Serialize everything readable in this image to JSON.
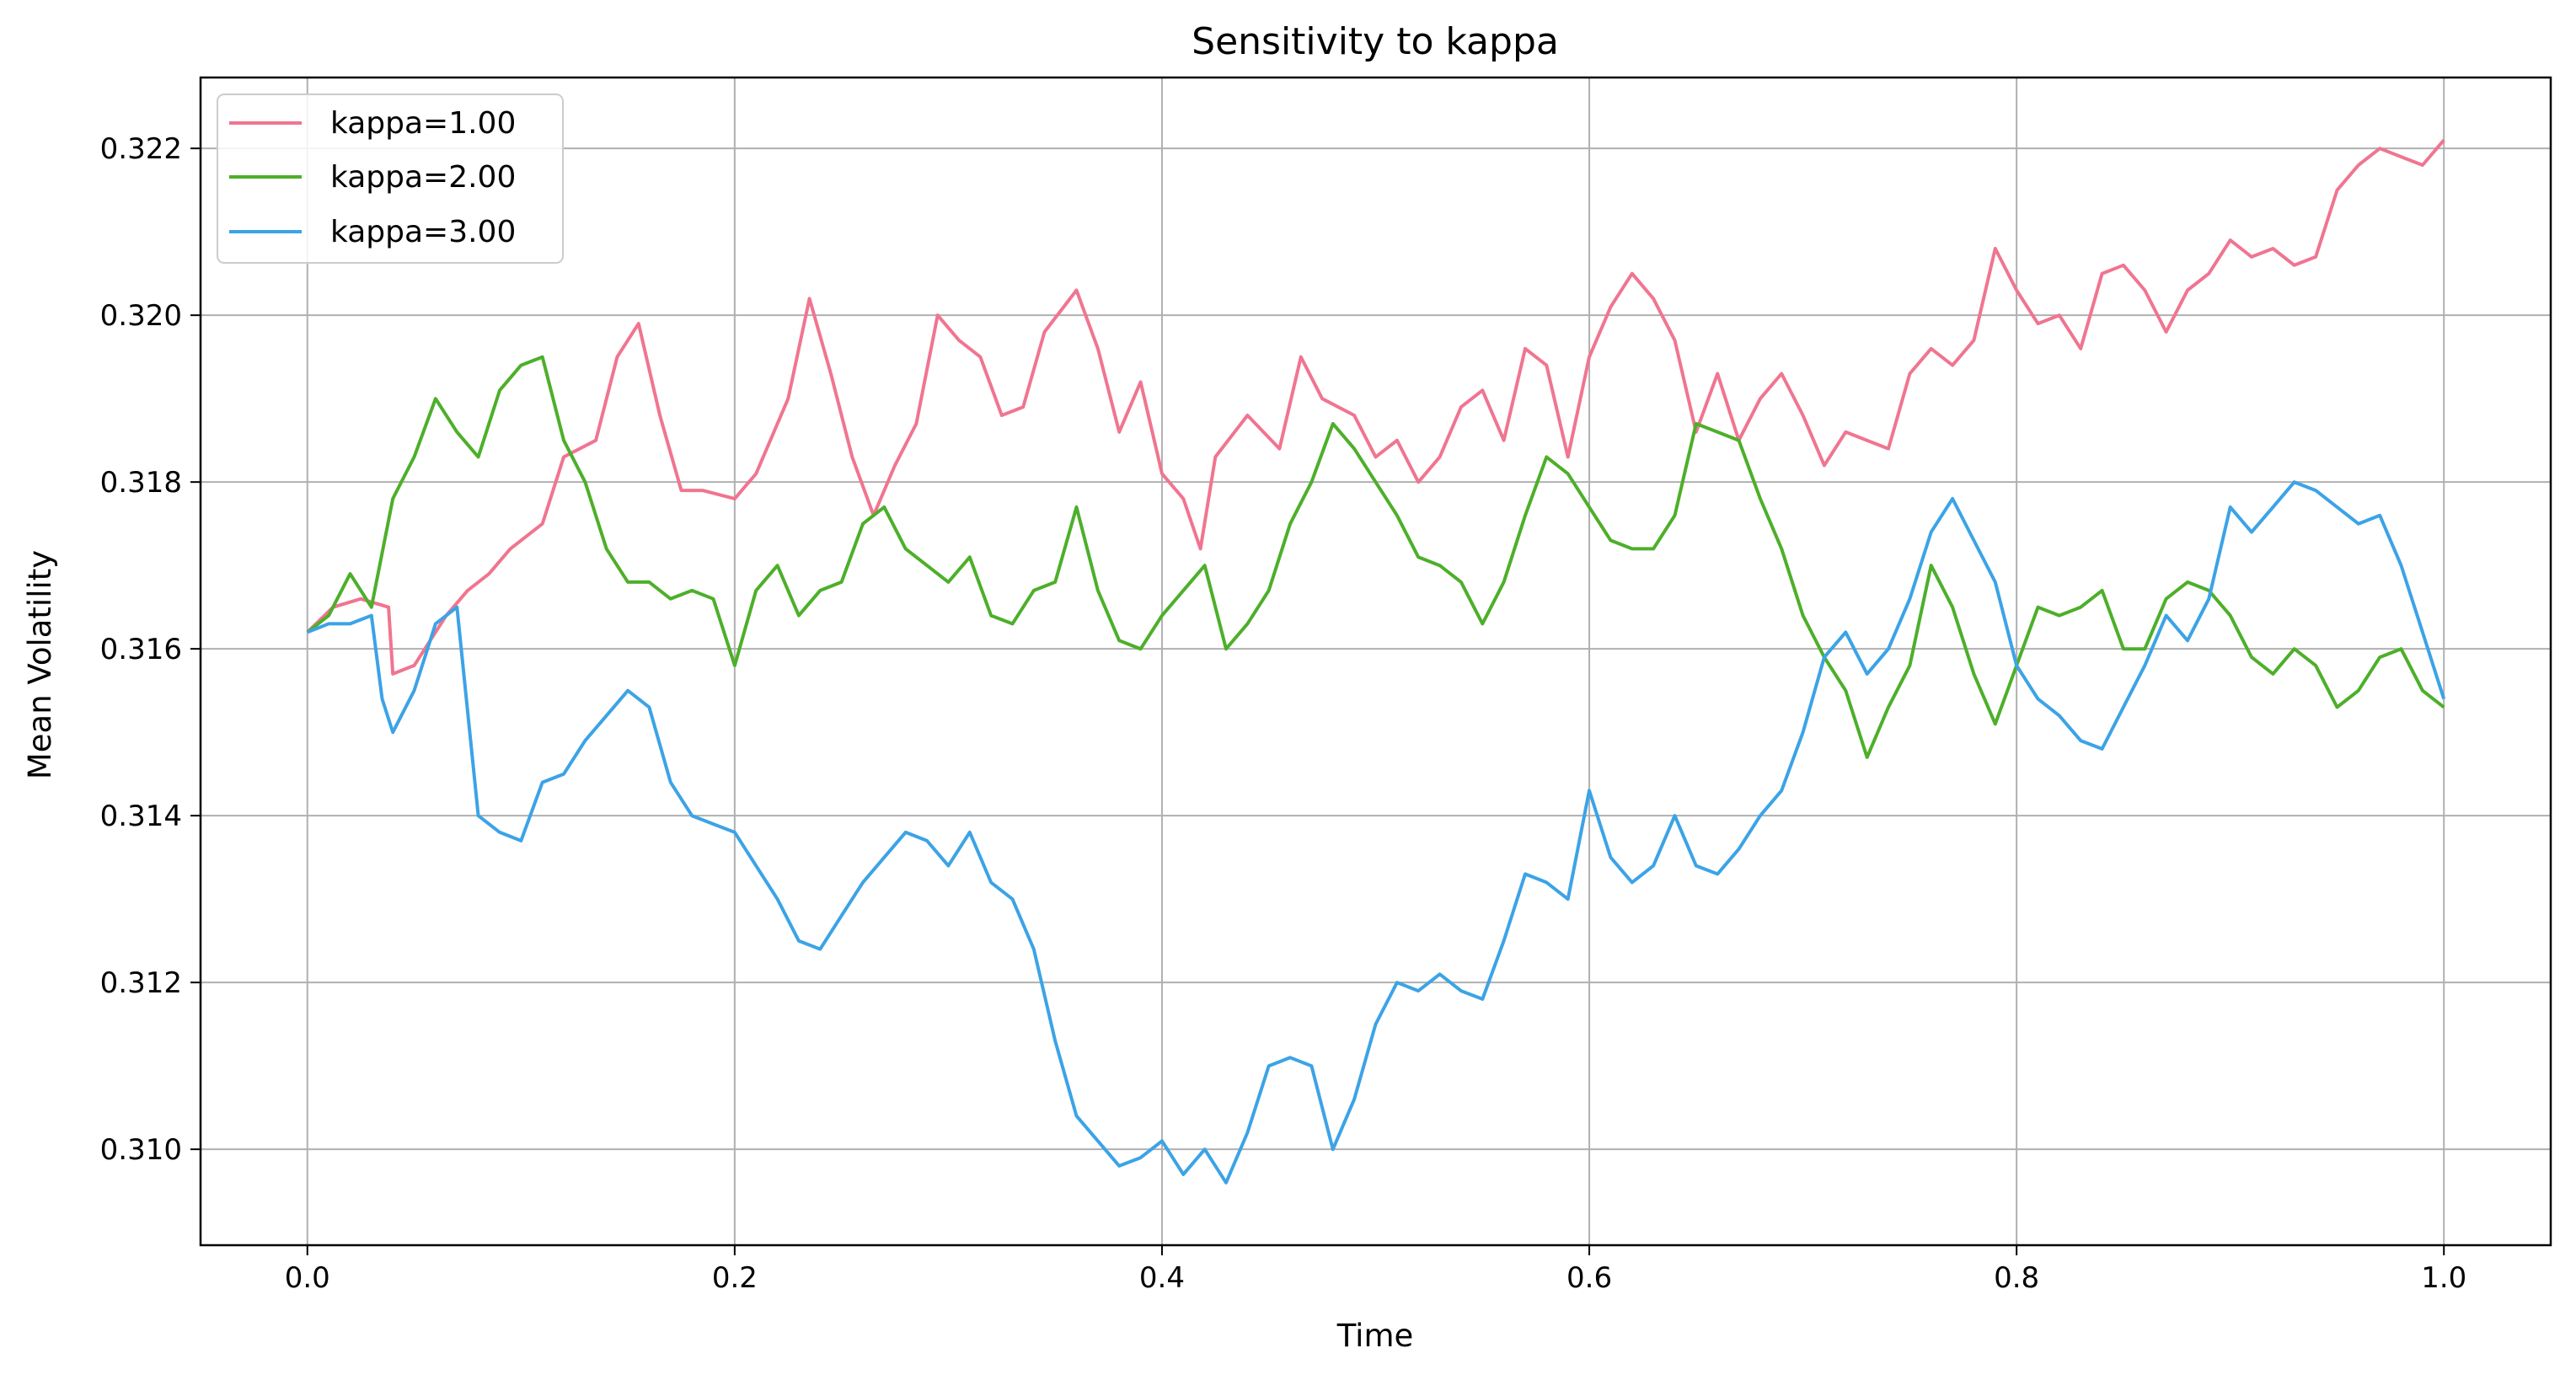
{
  "chart_data": {
    "type": "line",
    "title": "Sensitivity to kappa",
    "xlabel": "Time",
    "ylabel": "Mean Volatility",
    "xlim": [
      -0.05,
      1.05
    ],
    "ylim": [
      0.30885,
      0.32285
    ],
    "grid": true,
    "legend_position": "top-left",
    "xticks": [
      0.0,
      0.2,
      0.4,
      0.6,
      0.8,
      1.0
    ],
    "xtick_labels": [
      "0.0",
      "0.2",
      "0.4",
      "0.6",
      "0.8",
      "1.0"
    ],
    "yticks": [
      0.31,
      0.312,
      0.314,
      0.316,
      0.318,
      0.32,
      0.322
    ],
    "ytick_labels": [
      "0.310",
      "0.312",
      "0.314",
      "0.316",
      "0.318",
      "0.320",
      "0.322"
    ],
    "series": [
      {
        "name": "kappa=1.00",
        "color": "#f07590",
        "points": [
          [
            0.0,
            0.3162
          ],
          [
            0.012,
            0.3165
          ],
          [
            0.025,
            0.3166
          ],
          [
            0.038,
            0.3165
          ],
          [
            0.04,
            0.3157
          ],
          [
            0.05,
            0.3158
          ],
          [
            0.065,
            0.3164
          ],
          [
            0.075,
            0.3167
          ],
          [
            0.085,
            0.3169
          ],
          [
            0.095,
            0.3172
          ],
          [
            0.11,
            0.3175
          ],
          [
            0.12,
            0.3183
          ],
          [
            0.135,
            0.3185
          ],
          [
            0.145,
            0.3195
          ],
          [
            0.155,
            0.3199
          ],
          [
            0.165,
            0.3188
          ],
          [
            0.175,
            0.3179
          ],
          [
            0.185,
            0.3179
          ],
          [
            0.2,
            0.3178
          ],
          [
            0.21,
            0.3181
          ],
          [
            0.225,
            0.319
          ],
          [
            0.235,
            0.3202
          ],
          [
            0.245,
            0.3193
          ],
          [
            0.255,
            0.3183
          ],
          [
            0.265,
            0.3176
          ],
          [
            0.275,
            0.3182
          ],
          [
            0.285,
            0.3187
          ],
          [
            0.295,
            0.32
          ],
          [
            0.305,
            0.3197
          ],
          [
            0.315,
            0.3195
          ],
          [
            0.325,
            0.3188
          ],
          [
            0.335,
            0.3189
          ],
          [
            0.345,
            0.3198
          ],
          [
            0.36,
            0.3203
          ],
          [
            0.37,
            0.3196
          ],
          [
            0.38,
            0.3186
          ],
          [
            0.39,
            0.3192
          ],
          [
            0.4,
            0.3181
          ],
          [
            0.41,
            0.3178
          ],
          [
            0.418,
            0.3172
          ],
          [
            0.425,
            0.3183
          ],
          [
            0.44,
            0.3188
          ],
          [
            0.455,
            0.3184
          ],
          [
            0.465,
            0.3195
          ],
          [
            0.475,
            0.319
          ],
          [
            0.49,
            0.3188
          ],
          [
            0.5,
            0.3183
          ],
          [
            0.51,
            0.3185
          ],
          [
            0.52,
            0.318
          ],
          [
            0.53,
            0.3183
          ],
          [
            0.54,
            0.3189
          ],
          [
            0.55,
            0.3191
          ],
          [
            0.56,
            0.3185
          ],
          [
            0.57,
            0.3196
          ],
          [
            0.58,
            0.3194
          ],
          [
            0.59,
            0.3183
          ],
          [
            0.6,
            0.3195
          ],
          [
            0.61,
            0.3201
          ],
          [
            0.62,
            0.3205
          ],
          [
            0.63,
            0.3202
          ],
          [
            0.64,
            0.3197
          ],
          [
            0.65,
            0.3186
          ],
          [
            0.66,
            0.3193
          ],
          [
            0.67,
            0.3185
          ],
          [
            0.68,
            0.319
          ],
          [
            0.69,
            0.3193
          ],
          [
            0.7,
            0.3188
          ],
          [
            0.71,
            0.3182
          ],
          [
            0.72,
            0.3186
          ],
          [
            0.73,
            0.3185
          ],
          [
            0.74,
            0.3184
          ],
          [
            0.75,
            0.3193
          ],
          [
            0.76,
            0.3196
          ],
          [
            0.77,
            0.3194
          ],
          [
            0.78,
            0.3197
          ],
          [
            0.79,
            0.3208
          ],
          [
            0.8,
            0.3203
          ],
          [
            0.81,
            0.3199
          ],
          [
            0.82,
            0.32
          ],
          [
            0.83,
            0.3196
          ],
          [
            0.84,
            0.3205
          ],
          [
            0.85,
            0.3206
          ],
          [
            0.86,
            0.3203
          ],
          [
            0.87,
            0.3198
          ],
          [
            0.88,
            0.3203
          ],
          [
            0.89,
            0.3205
          ],
          [
            0.9,
            0.3209
          ],
          [
            0.91,
            0.3207
          ],
          [
            0.92,
            0.3208
          ],
          [
            0.93,
            0.3206
          ],
          [
            0.94,
            0.3207
          ],
          [
            0.95,
            0.3215
          ],
          [
            0.96,
            0.3218
          ],
          [
            0.97,
            0.322
          ],
          [
            0.98,
            0.3219
          ],
          [
            0.99,
            0.3218
          ],
          [
            1.0,
            0.3221
          ]
        ]
      },
      {
        "name": "kappa=2.00",
        "color": "#4daf2a",
        "points": [
          [
            0.0,
            0.3162
          ],
          [
            0.01,
            0.3164
          ],
          [
            0.02,
            0.3169
          ],
          [
            0.03,
            0.3165
          ],
          [
            0.04,
            0.3178
          ],
          [
            0.05,
            0.3183
          ],
          [
            0.06,
            0.319
          ],
          [
            0.07,
            0.3186
          ],
          [
            0.08,
            0.3183
          ],
          [
            0.09,
            0.3191
          ],
          [
            0.1,
            0.3194
          ],
          [
            0.11,
            0.3195
          ],
          [
            0.12,
            0.3185
          ],
          [
            0.13,
            0.318
          ],
          [
            0.14,
            0.3172
          ],
          [
            0.15,
            0.3168
          ],
          [
            0.16,
            0.3168
          ],
          [
            0.17,
            0.3166
          ],
          [
            0.18,
            0.3167
          ],
          [
            0.19,
            0.3166
          ],
          [
            0.2,
            0.3158
          ],
          [
            0.21,
            0.3167
          ],
          [
            0.22,
            0.317
          ],
          [
            0.23,
            0.3164
          ],
          [
            0.24,
            0.3167
          ],
          [
            0.25,
            0.3168
          ],
          [
            0.26,
            0.3175
          ],
          [
            0.27,
            0.3177
          ],
          [
            0.28,
            0.3172
          ],
          [
            0.29,
            0.317
          ],
          [
            0.3,
            0.3168
          ],
          [
            0.31,
            0.3171
          ],
          [
            0.32,
            0.3164
          ],
          [
            0.33,
            0.3163
          ],
          [
            0.34,
            0.3167
          ],
          [
            0.35,
            0.3168
          ],
          [
            0.36,
            0.3177
          ],
          [
            0.37,
            0.3167
          ],
          [
            0.38,
            0.3161
          ],
          [
            0.39,
            0.316
          ],
          [
            0.4,
            0.3164
          ],
          [
            0.41,
            0.3167
          ],
          [
            0.42,
            0.317
          ],
          [
            0.43,
            0.316
          ],
          [
            0.44,
            0.3163
          ],
          [
            0.45,
            0.3167
          ],
          [
            0.46,
            0.3175
          ],
          [
            0.47,
            0.318
          ],
          [
            0.48,
            0.3187
          ],
          [
            0.49,
            0.3184
          ],
          [
            0.5,
            0.318
          ],
          [
            0.51,
            0.3176
          ],
          [
            0.52,
            0.3171
          ],
          [
            0.53,
            0.317
          ],
          [
            0.54,
            0.3168
          ],
          [
            0.55,
            0.3163
          ],
          [
            0.56,
            0.3168
          ],
          [
            0.57,
            0.3176
          ],
          [
            0.58,
            0.3183
          ],
          [
            0.59,
            0.3181
          ],
          [
            0.6,
            0.3177
          ],
          [
            0.61,
            0.3173
          ],
          [
            0.62,
            0.3172
          ],
          [
            0.63,
            0.3172
          ],
          [
            0.64,
            0.3176
          ],
          [
            0.65,
            0.3187
          ],
          [
            0.66,
            0.3186
          ],
          [
            0.67,
            0.3185
          ],
          [
            0.68,
            0.3178
          ],
          [
            0.69,
            0.3172
          ],
          [
            0.7,
            0.3164
          ],
          [
            0.71,
            0.3159
          ],
          [
            0.72,
            0.3155
          ],
          [
            0.73,
            0.3147
          ],
          [
            0.74,
            0.3153
          ],
          [
            0.75,
            0.3158
          ],
          [
            0.76,
            0.317
          ],
          [
            0.77,
            0.3165
          ],
          [
            0.78,
            0.3157
          ],
          [
            0.79,
            0.3151
          ],
          [
            0.8,
            0.3158
          ],
          [
            0.81,
            0.3165
          ],
          [
            0.82,
            0.3164
          ],
          [
            0.83,
            0.3165
          ],
          [
            0.84,
            0.3167
          ],
          [
            0.85,
            0.316
          ],
          [
            0.86,
            0.316
          ],
          [
            0.87,
            0.3166
          ],
          [
            0.88,
            0.3168
          ],
          [
            0.89,
            0.3167
          ],
          [
            0.9,
            0.3164
          ],
          [
            0.91,
            0.3159
          ],
          [
            0.92,
            0.3157
          ],
          [
            0.93,
            0.316
          ],
          [
            0.94,
            0.3158
          ],
          [
            0.95,
            0.3153
          ],
          [
            0.96,
            0.3155
          ],
          [
            0.97,
            0.3159
          ],
          [
            0.98,
            0.316
          ],
          [
            0.99,
            0.3155
          ],
          [
            1.0,
            0.3153
          ]
        ]
      },
      {
        "name": "kappa=3.00",
        "color": "#3ca3e6",
        "points": [
          [
            0.0,
            0.3162
          ],
          [
            0.01,
            0.3163
          ],
          [
            0.02,
            0.3163
          ],
          [
            0.03,
            0.3164
          ],
          [
            0.035,
            0.3154
          ],
          [
            0.04,
            0.315
          ],
          [
            0.05,
            0.3155
          ],
          [
            0.06,
            0.3163
          ],
          [
            0.07,
            0.3165
          ],
          [
            0.08,
            0.314
          ],
          [
            0.09,
            0.3138
          ],
          [
            0.1,
            0.3137
          ],
          [
            0.11,
            0.3144
          ],
          [
            0.12,
            0.3145
          ],
          [
            0.13,
            0.3149
          ],
          [
            0.14,
            0.3152
          ],
          [
            0.15,
            0.3155
          ],
          [
            0.16,
            0.3153
          ],
          [
            0.17,
            0.3144
          ],
          [
            0.18,
            0.314
          ],
          [
            0.19,
            0.3139
          ],
          [
            0.2,
            0.3138
          ],
          [
            0.21,
            0.3134
          ],
          [
            0.22,
            0.313
          ],
          [
            0.23,
            0.3125
          ],
          [
            0.24,
            0.3124
          ],
          [
            0.25,
            0.3128
          ],
          [
            0.26,
            0.3132
          ],
          [
            0.27,
            0.3135
          ],
          [
            0.28,
            0.3138
          ],
          [
            0.29,
            0.3137
          ],
          [
            0.3,
            0.3134
          ],
          [
            0.31,
            0.3138
          ],
          [
            0.32,
            0.3132
          ],
          [
            0.33,
            0.313
          ],
          [
            0.34,
            0.3124
          ],
          [
            0.35,
            0.3113
          ],
          [
            0.36,
            0.3104
          ],
          [
            0.37,
            0.3101
          ],
          [
            0.38,
            0.3098
          ],
          [
            0.39,
            0.3099
          ],
          [
            0.4,
            0.3101
          ],
          [
            0.41,
            0.3097
          ],
          [
            0.42,
            0.31
          ],
          [
            0.43,
            0.3096
          ],
          [
            0.44,
            0.3102
          ],
          [
            0.45,
            0.311
          ],
          [
            0.46,
            0.3111
          ],
          [
            0.47,
            0.311
          ],
          [
            0.48,
            0.31
          ],
          [
            0.49,
            0.3106
          ],
          [
            0.5,
            0.3115
          ],
          [
            0.51,
            0.312
          ],
          [
            0.52,
            0.3119
          ],
          [
            0.53,
            0.3121
          ],
          [
            0.54,
            0.3119
          ],
          [
            0.55,
            0.3118
          ],
          [
            0.56,
            0.3125
          ],
          [
            0.57,
            0.3133
          ],
          [
            0.58,
            0.3132
          ],
          [
            0.59,
            0.313
          ],
          [
            0.6,
            0.3143
          ],
          [
            0.61,
            0.3135
          ],
          [
            0.62,
            0.3132
          ],
          [
            0.63,
            0.3134
          ],
          [
            0.64,
            0.314
          ],
          [
            0.65,
            0.3134
          ],
          [
            0.66,
            0.3133
          ],
          [
            0.67,
            0.3136
          ],
          [
            0.68,
            0.314
          ],
          [
            0.69,
            0.3143
          ],
          [
            0.7,
            0.315
          ],
          [
            0.71,
            0.3159
          ],
          [
            0.72,
            0.3162
          ],
          [
            0.73,
            0.3157
          ],
          [
            0.74,
            0.316
          ],
          [
            0.75,
            0.3166
          ],
          [
            0.76,
            0.3174
          ],
          [
            0.77,
            0.3178
          ],
          [
            0.78,
            0.3173
          ],
          [
            0.79,
            0.3168
          ],
          [
            0.8,
            0.3158
          ],
          [
            0.81,
            0.3154
          ],
          [
            0.82,
            0.3152
          ],
          [
            0.83,
            0.3149
          ],
          [
            0.84,
            0.3148
          ],
          [
            0.85,
            0.3153
          ],
          [
            0.86,
            0.3158
          ],
          [
            0.87,
            0.3164
          ],
          [
            0.88,
            0.3161
          ],
          [
            0.89,
            0.3166
          ],
          [
            0.9,
            0.3177
          ],
          [
            0.91,
            0.3174
          ],
          [
            0.92,
            0.3177
          ],
          [
            0.93,
            0.318
          ],
          [
            0.94,
            0.3179
          ],
          [
            0.95,
            0.3177
          ],
          [
            0.96,
            0.3175
          ],
          [
            0.97,
            0.3176
          ],
          [
            0.98,
            0.317
          ],
          [
            0.99,
            0.3162
          ],
          [
            1.0,
            0.3154
          ]
        ]
      }
    ]
  }
}
